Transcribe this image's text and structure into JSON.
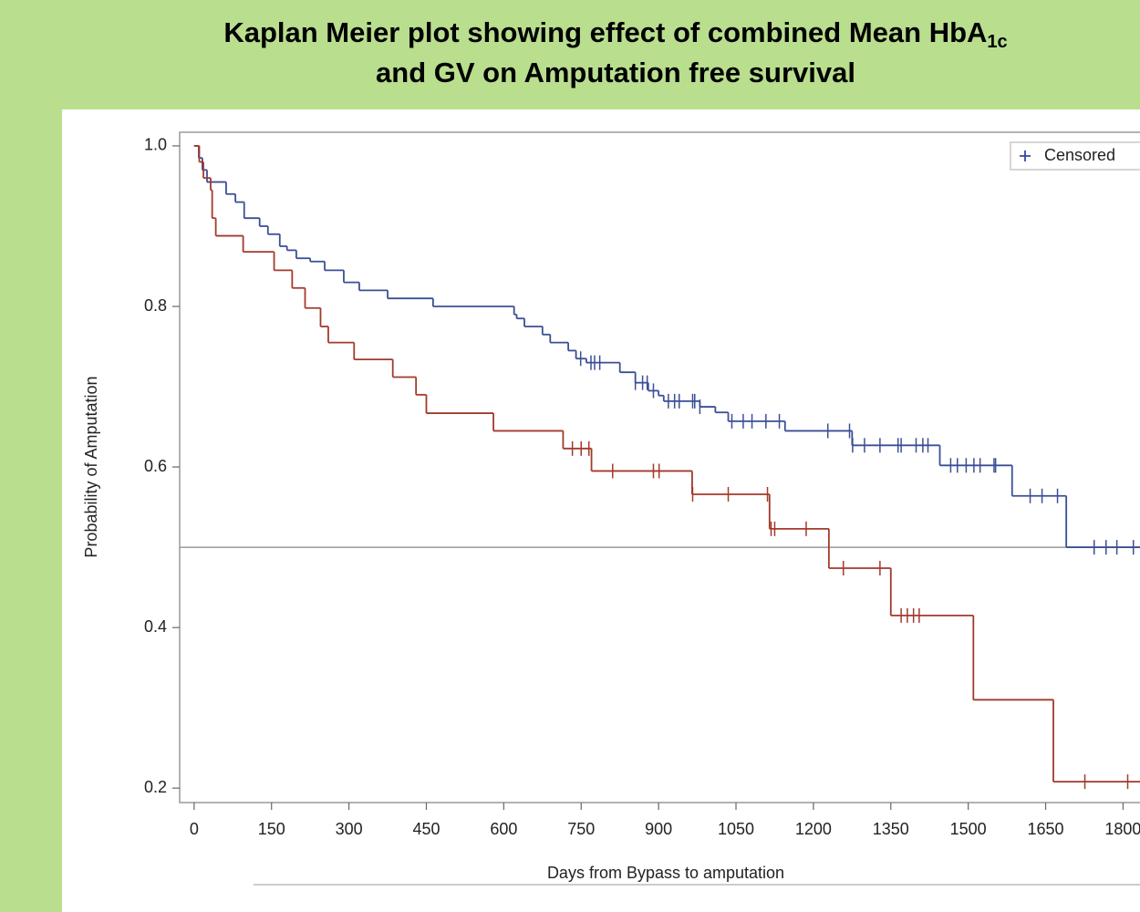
{
  "chart_data": {
    "type": "kaplan-meier",
    "title": [
      "Kaplan Meier plot showing effect of combined Mean HbA",
      "1c",
      "and GV on Amputation free survival"
    ],
    "x_label": "Days from Bypass to amputation",
    "y_label": "Probability of Amputation",
    "xlim": [
      -28,
      1900
    ],
    "ylim": [
      0.182,
      1.017
    ],
    "xticks": [
      0,
      150,
      300,
      450,
      600,
      750,
      900,
      1050,
      1200,
      1350,
      1500,
      1650,
      1800
    ],
    "yticks": [
      0.2,
      0.4,
      0.6,
      0.8,
      {
        "value": 1.0,
        "label": "1.0"
      }
    ],
    "reference_line": 0.5,
    "legend": {
      "label": "Censored",
      "position": "upper right",
      "color": "#2f47a8"
    },
    "series": [
      {
        "color": "#3b4f96",
        "x": [
          0,
          9,
          16,
          25,
          62,
          80,
          97,
          127,
          143,
          166,
          180,
          198,
          225,
          253,
          290,
          320,
          375,
          463,
          620,
          625,
          640,
          675,
          690,
          725,
          740,
          760,
          825,
          855,
          880,
          900,
          910,
          980,
          1010,
          1035,
          1145,
          1275,
          1445,
          1585,
          1690
        ],
        "values": [
          1.0,
          0.985,
          0.97,
          0.955,
          0.94,
          0.93,
          0.91,
          0.9,
          0.89,
          0.875,
          0.87,
          0.86,
          0.856,
          0.845,
          0.83,
          0.82,
          0.81,
          0.8,
          0.79,
          0.785,
          0.775,
          0.765,
          0.755,
          0.745,
          0.735,
          0.73,
          0.718,
          0.705,
          0.695,
          0.689,
          0.682,
          0.675,
          0.668,
          0.657,
          0.645,
          0.627,
          0.602,
          0.564,
          0.5
        ],
        "censored_x": [
          749,
          769,
          776,
          786,
          855,
          869,
          878,
          890,
          919,
          931,
          940,
          966,
          970,
          980,
          1042,
          1064,
          1081,
          1108,
          1134,
          1228,
          1270,
          1276,
          1299,
          1329,
          1364,
          1370,
          1399,
          1412,
          1422,
          1466,
          1479,
          1496,
          1511,
          1523,
          1550,
          1553,
          1620,
          1643,
          1673,
          1744,
          1767,
          1788,
          1820
        ]
      },
      {
        "color": "#a23a2c",
        "x": [
          0,
          10,
          18,
          32,
          35,
          42,
          95,
          155,
          190,
          215,
          245,
          260,
          310,
          385,
          430,
          450,
          580,
          715,
          770,
          965,
          1115,
          1230,
          1350,
          1510,
          1665
        ],
        "values": [
          1.0,
          0.98,
          0.96,
          0.945,
          0.91,
          0.888,
          0.868,
          0.845,
          0.823,
          0.798,
          0.775,
          0.755,
          0.734,
          0.712,
          0.69,
          0.667,
          0.645,
          0.623,
          0.595,
          0.566,
          0.523,
          0.474,
          0.415,
          0.31,
          0.208
        ],
        "censored_x": [
          733,
          750,
          765,
          811,
          890,
          901,
          966,
          1035,
          1111,
          1118,
          1125,
          1186,
          1258,
          1329,
          1370,
          1382,
          1394,
          1405,
          1726,
          1809
        ]
      }
    ]
  }
}
